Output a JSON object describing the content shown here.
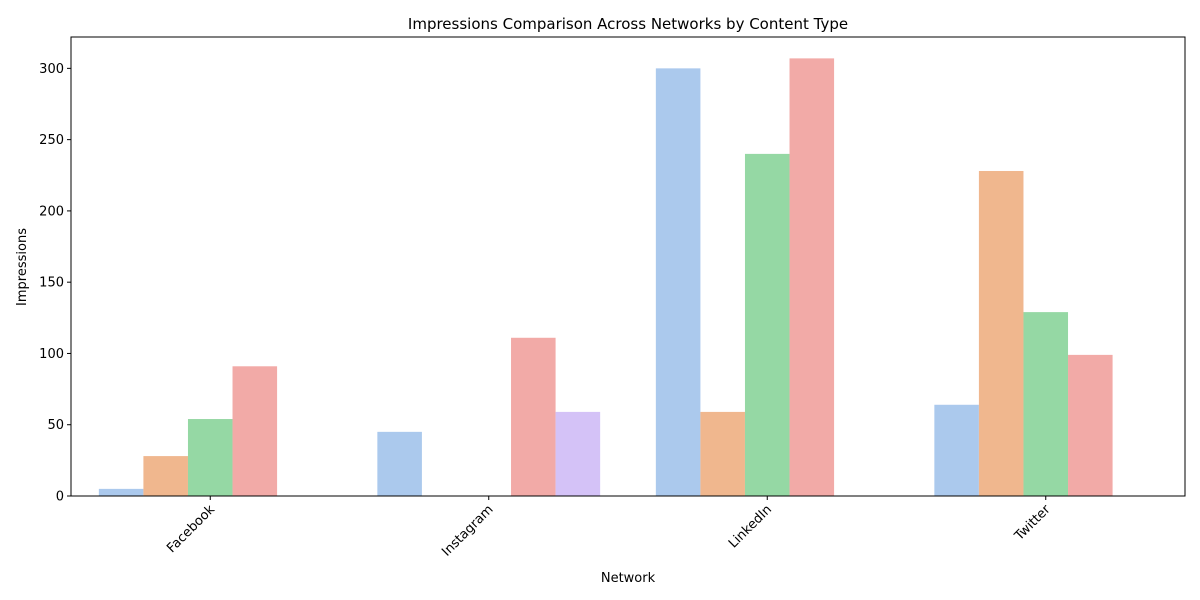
{
  "chart_data": {
    "type": "bar",
    "title": "Impressions Comparison Across Networks by Content Type",
    "xlabel": "Network",
    "ylabel": "Impressions",
    "categories": [
      "Facebook",
      "Instagram",
      "LinkedIn",
      "Twitter"
    ],
    "ylim": [
      0,
      322
    ],
    "yticks": [
      0,
      50,
      100,
      150,
      200,
      250,
      300
    ],
    "grid": false,
    "legend": "none",
    "series": [
      {
        "color": "#abc9ed",
        "values": [
          5,
          45,
          300,
          64
        ]
      },
      {
        "color": "#f0b78e",
        "values": [
          28,
          0,
          59,
          228
        ]
      },
      {
        "color": "#95d8a4",
        "values": [
          54,
          0,
          240,
          129
        ]
      },
      {
        "color": "#f2aaa7",
        "values": [
          91,
          111,
          307,
          99
        ]
      },
      {
        "color": "#d4c2f7",
        "values": [
          0,
          59,
          0,
          0
        ]
      }
    ]
  }
}
